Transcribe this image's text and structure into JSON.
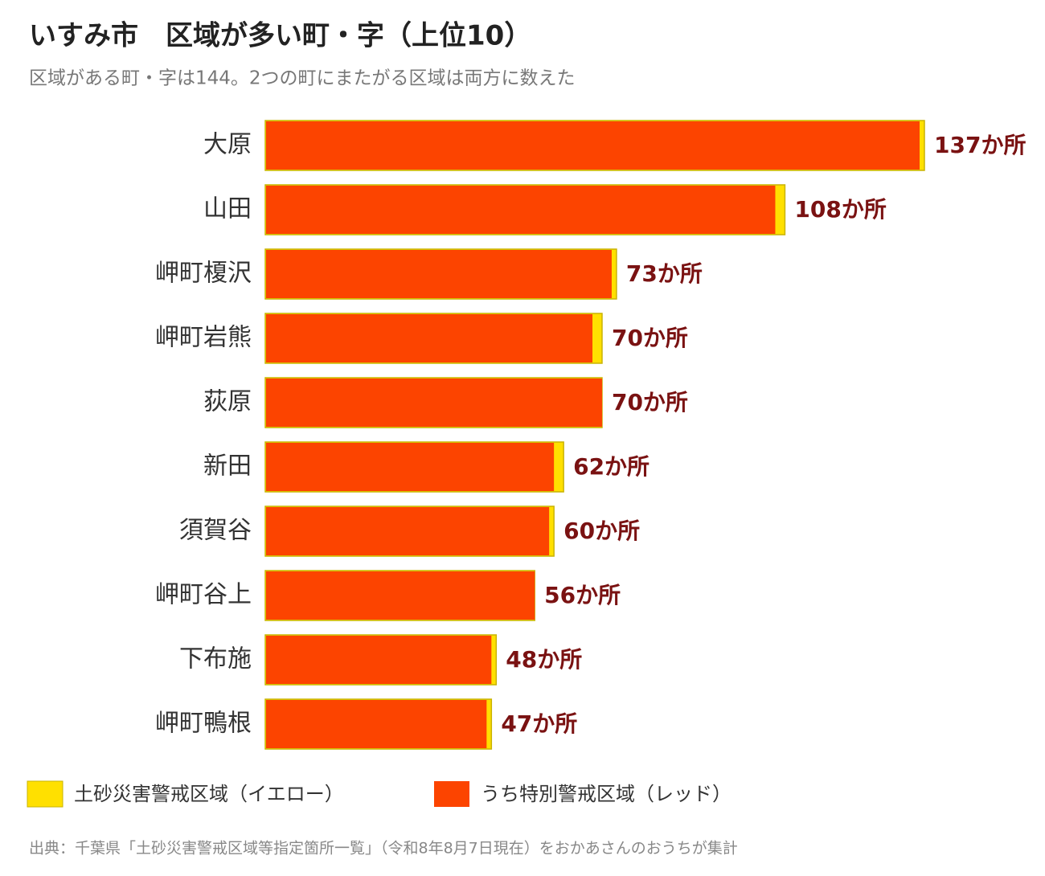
{
  "chart_data": {
    "type": "bar",
    "orientation": "horizontal",
    "title": "いすみ市　区域が多い町・字（上位10）",
    "subtitle": "区域がある町・字は144。2つの町にまたがる区域は両方に数えた",
    "categories": [
      "大原",
      "山田",
      "岬町榎沢",
      "岬町岩熊",
      "荻原",
      "新田",
      "須賀谷",
      "岬町谷上",
      "下布施",
      "岬町鴨根"
    ],
    "series": [
      {
        "name": "土砂災害警戒区域（イエロー）",
        "color": "#ffe000",
        "values": [
          137,
          108,
          73,
          70,
          70,
          62,
          60,
          56,
          48,
          47
        ],
        "value_labels": [
          "137か所",
          "108か所",
          "73か所",
          "70か所",
          "70か所",
          "62か所",
          "60か所",
          "56か所",
          "48か所",
          "47か所"
        ]
      },
      {
        "name": "うち特別警戒区域（レッド）",
        "color": "#fc4400",
        "values": [
          136,
          106,
          72,
          68,
          70,
          60,
          59,
          56,
          47,
          46
        ]
      }
    ],
    "source": "出典：千葉県「土砂災害警戒区域等指定箇所一覧」（令和8年8月7日現在）をおかあさんのおうちが集計"
  }
}
